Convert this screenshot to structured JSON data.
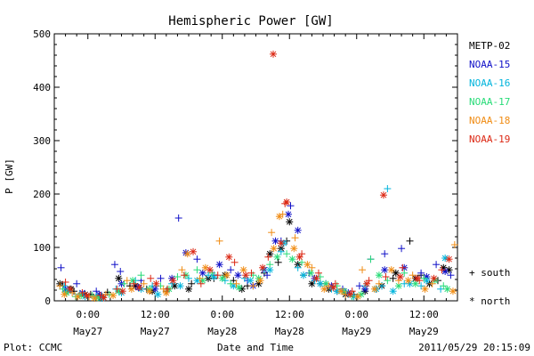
{
  "chart_data": {
    "type": "scatter",
    "title": "Hemispheric Power [GW]",
    "xlabel": "Date and Time",
    "ylabel": "P [GW]",
    "ylim": [
      0,
      500
    ],
    "yticks": [
      0,
      100,
      200,
      300,
      400,
      500
    ],
    "xlim_hours": [
      -6,
      66
    ],
    "xticks": [
      {
        "hour": 0,
        "time": "0:00",
        "date": "May27"
      },
      {
        "hour": 12,
        "time": "12:00",
        "date": "May27"
      },
      {
        "hour": 24,
        "time": "0:00",
        "date": "May28"
      },
      {
        "hour": 36,
        "time": "12:00",
        "date": "May28"
      },
      {
        "hour": 48,
        "time": "0:00",
        "date": "May29"
      },
      {
        "hour": 60,
        "time": "12:00",
        "date": "May29"
      }
    ],
    "grid": false,
    "legend_position": "right",
    "markers": {
      "south": "+",
      "north": "*"
    },
    "marker_legend": [
      {
        "symbol": "+",
        "label": "south"
      },
      {
        "symbol": "*",
        "label": "north"
      }
    ],
    "series": [
      {
        "name": "METP-02",
        "color": "#000000",
        "south": [
          [
            -4.5,
            28
          ],
          [
            -2.5,
            18
          ],
          [
            0.5,
            12
          ],
          [
            3.5,
            16
          ],
          [
            7.5,
            28
          ],
          [
            10.5,
            22
          ],
          [
            14,
            18
          ],
          [
            18.5,
            32
          ],
          [
            22.5,
            42
          ],
          [
            26,
            38
          ],
          [
            28.5,
            28
          ],
          [
            31.5,
            52
          ],
          [
            34,
            72
          ],
          [
            35.5,
            112
          ],
          [
            38.5,
            48
          ],
          [
            41.5,
            32
          ],
          [
            44.5,
            18
          ],
          [
            47.5,
            12
          ],
          [
            51.5,
            22
          ],
          [
            54.5,
            42
          ],
          [
            57.5,
            112
          ],
          [
            59.5,
            48
          ],
          [
            62.5,
            38
          ]
        ],
        "north": [
          [
            -5,
            32
          ],
          [
            -3,
            22
          ],
          [
            -0.5,
            12
          ],
          [
            2.5,
            8
          ],
          [
            5.5,
            42
          ],
          [
            8.5,
            28
          ],
          [
            11.5,
            18
          ],
          [
            15.5,
            28
          ],
          [
            18,
            22
          ],
          [
            21.5,
            42
          ],
          [
            24.5,
            48
          ],
          [
            27.5,
            22
          ],
          [
            30.5,
            32
          ],
          [
            32.5,
            88
          ],
          [
            34.5,
            98
          ],
          [
            36,
            148
          ],
          [
            37.5,
            68
          ],
          [
            40,
            32
          ],
          [
            43,
            22
          ],
          [
            46,
            12
          ],
          [
            49.5,
            18
          ],
          [
            52.5,
            28
          ],
          [
            55,
            52
          ],
          [
            58.5,
            42
          ],
          [
            61,
            32
          ],
          [
            63.5,
            62
          ],
          [
            64.5,
            58
          ]
        ]
      },
      {
        "name": "NOAA-15",
        "color": "#1010c8",
        "south": [
          [
            -4.8,
            62
          ],
          [
            -2,
            32
          ],
          [
            1.5,
            18
          ],
          [
            4.8,
            68
          ],
          [
            5.8,
            55
          ],
          [
            9.5,
            38
          ],
          [
            13,
            42
          ],
          [
            16.2,
            155
          ],
          [
            19.5,
            78
          ],
          [
            22.5,
            48
          ],
          [
            25.5,
            58
          ],
          [
            28.5,
            38
          ],
          [
            32,
            48
          ],
          [
            34.5,
            112
          ],
          [
            36.2,
            178
          ],
          [
            39.5,
            52
          ],
          [
            42.5,
            32
          ],
          [
            45.5,
            22
          ],
          [
            48.5,
            28
          ],
          [
            50.5,
            78
          ],
          [
            53,
            88
          ],
          [
            56,
            98
          ],
          [
            59.5,
            52
          ],
          [
            62.2,
            68
          ],
          [
            64.8,
            48
          ]
        ],
        "north": [
          [
            -4,
            22
          ],
          [
            -1,
            15
          ],
          [
            2,
            12
          ],
          [
            6,
            32
          ],
          [
            9,
            25
          ],
          [
            12,
            22
          ],
          [
            15,
            42
          ],
          [
            17.5,
            90
          ],
          [
            20.5,
            52
          ],
          [
            23.5,
            68
          ],
          [
            26.8,
            48
          ],
          [
            29.5,
            28
          ],
          [
            31.5,
            58
          ],
          [
            33.5,
            112
          ],
          [
            35.8,
            162
          ],
          [
            37.5,
            132
          ],
          [
            40.5,
            42
          ],
          [
            43.5,
            28
          ],
          [
            46.5,
            15
          ],
          [
            49.5,
            22
          ],
          [
            53,
            58
          ],
          [
            56.5,
            62
          ],
          [
            60.5,
            45
          ],
          [
            63.8,
            55
          ]
        ]
      },
      {
        "name": "NOAA-16",
        "color": "#00b4dc",
        "south": [
          [
            -4.2,
            28
          ],
          [
            -1.5,
            12
          ],
          [
            1.5,
            8
          ],
          [
            5,
            22
          ],
          [
            8.5,
            38
          ],
          [
            11.5,
            28
          ],
          [
            15,
            32
          ],
          [
            18,
            42
          ],
          [
            21.5,
            48
          ],
          [
            24.5,
            38
          ],
          [
            28,
            42
          ],
          [
            31.5,
            58
          ],
          [
            34.5,
            92
          ],
          [
            37.5,
            62
          ],
          [
            40.5,
            38
          ],
          [
            43.5,
            22
          ],
          [
            46.5,
            12
          ],
          [
            49.5,
            28
          ],
          [
            52.5,
            28
          ],
          [
            53.5,
            210
          ],
          [
            56.5,
            32
          ],
          [
            59.5,
            28
          ],
          [
            63,
            22
          ]
        ],
        "north": [
          [
            -3.5,
            18
          ],
          [
            -0.5,
            8
          ],
          [
            2.5,
            5
          ],
          [
            6,
            15
          ],
          [
            9.5,
            22
          ],
          [
            12.5,
            12
          ],
          [
            16.5,
            28
          ],
          [
            19.5,
            38
          ],
          [
            22.5,
            45
          ],
          [
            26,
            28
          ],
          [
            29,
            38
          ],
          [
            32.5,
            58
          ],
          [
            35,
            108
          ],
          [
            38.5,
            48
          ],
          [
            41.5,
            32
          ],
          [
            44.5,
            18
          ],
          [
            47.5,
            8
          ],
          [
            51.5,
            22
          ],
          [
            54.5,
            18
          ],
          [
            57.5,
            32
          ],
          [
            60.5,
            38
          ],
          [
            63.8,
            80
          ]
        ]
      },
      {
        "name": "NOAA-17",
        "color": "#28dc78",
        "south": [
          [
            -4.5,
            22
          ],
          [
            -2.2,
            8
          ],
          [
            0.8,
            10
          ],
          [
            3.8,
            12
          ],
          [
            6.5,
            32
          ],
          [
            9.5,
            48
          ],
          [
            13,
            28
          ],
          [
            16,
            45
          ],
          [
            19.5,
            58
          ],
          [
            22.2,
            52
          ],
          [
            25.5,
            32
          ],
          [
            29.5,
            48
          ],
          [
            32.5,
            68
          ],
          [
            35.5,
            88
          ],
          [
            38.2,
            72
          ],
          [
            41.5,
            45
          ],
          [
            44.5,
            28
          ],
          [
            47.2,
            8
          ],
          [
            50.5,
            78
          ],
          [
            53.5,
            38
          ],
          [
            56.5,
            52
          ],
          [
            60,
            42
          ],
          [
            63.5,
            28
          ]
        ],
        "north": [
          [
            -3.8,
            15
          ],
          [
            -1.2,
            10
          ],
          [
            1.8,
            6
          ],
          [
            5.5,
            18
          ],
          [
            8,
            38
          ],
          [
            11,
            22
          ],
          [
            14.5,
            22
          ],
          [
            17.5,
            48
          ],
          [
            20.5,
            38
          ],
          [
            24,
            42
          ],
          [
            27,
            25
          ],
          [
            30.5,
            42
          ],
          [
            33.8,
            82
          ],
          [
            36.5,
            78
          ],
          [
            39.8,
            52
          ],
          [
            42.5,
            32
          ],
          [
            45.8,
            18
          ],
          [
            48.8,
            12
          ],
          [
            52,
            48
          ],
          [
            55.5,
            28
          ],
          [
            58.5,
            32
          ],
          [
            62,
            38
          ],
          [
            64.2,
            22
          ]
        ]
      },
      {
        "name": "NOAA-18",
        "color": "#f08c14",
        "south": [
          [
            -5,
            28
          ],
          [
            -2.8,
            15
          ],
          [
            0.2,
            8
          ],
          [
            3.2,
            12
          ],
          [
            7,
            38
          ],
          [
            10,
            32
          ],
          [
            13.5,
            22
          ],
          [
            16.8,
            58
          ],
          [
            20,
            42
          ],
          [
            23.5,
            112
          ],
          [
            26.5,
            32
          ],
          [
            29.5,
            28
          ],
          [
            32.8,
            128
          ],
          [
            34.8,
            162
          ],
          [
            37,
            118
          ],
          [
            40,
            62
          ],
          [
            43,
            28
          ],
          [
            46,
            12
          ],
          [
            49,
            58
          ],
          [
            52,
            32
          ],
          [
            55.5,
            38
          ],
          [
            58,
            48
          ],
          [
            61.5,
            32
          ],
          [
            65.5,
            105
          ]
        ],
        "north": [
          [
            -4.2,
            12
          ],
          [
            -1.8,
            8
          ],
          [
            1.2,
            5
          ],
          [
            4.5,
            10
          ],
          [
            7.8,
            22
          ],
          [
            11,
            18
          ],
          [
            14,
            15
          ],
          [
            17.8,
            88
          ],
          [
            21,
            62
          ],
          [
            24.8,
            48
          ],
          [
            27.8,
            58
          ],
          [
            30.8,
            38
          ],
          [
            33.2,
            98
          ],
          [
            34.2,
            158
          ],
          [
            36.8,
            98
          ],
          [
            39.2,
            68
          ],
          [
            42.2,
            22
          ],
          [
            45.2,
            18
          ],
          [
            48.2,
            8
          ],
          [
            51.2,
            22
          ],
          [
            54.2,
            58
          ],
          [
            57.2,
            38
          ],
          [
            60.2,
            22
          ],
          [
            65.2,
            18
          ]
        ]
      },
      {
        "name": "NOAA-19",
        "color": "#dc2814",
        "south": [
          [
            -4,
            35
          ],
          [
            -1,
            15
          ],
          [
            2.2,
            10
          ],
          [
            5.2,
            22
          ],
          [
            8.2,
            32
          ],
          [
            11.2,
            42
          ],
          [
            14.2,
            22
          ],
          [
            17.2,
            48
          ],
          [
            20.2,
            32
          ],
          [
            23.2,
            48
          ],
          [
            26.2,
            72
          ],
          [
            29.2,
            52
          ],
          [
            32.2,
            82
          ],
          [
            35.2,
            182
          ],
          [
            38.2,
            88
          ],
          [
            41.2,
            52
          ],
          [
            44.2,
            32
          ],
          [
            47.2,
            18
          ],
          [
            50.2,
            38
          ],
          [
            53.2,
            45
          ],
          [
            56.2,
            62
          ],
          [
            59.2,
            38
          ],
          [
            63.2,
            58
          ]
        ],
        "north": [
          [
            -3.2,
            22
          ],
          [
            -0.2,
            10
          ],
          [
            2.8,
            6
          ],
          [
            6.2,
            18
          ],
          [
            9.2,
            25
          ],
          [
            12.2,
            32
          ],
          [
            15.2,
            38
          ],
          [
            18.8,
            92
          ],
          [
            21.8,
            58
          ],
          [
            25.2,
            82
          ],
          [
            28.2,
            48
          ],
          [
            31.2,
            62
          ],
          [
            33.1,
            462
          ],
          [
            34.5,
            108
          ],
          [
            35.5,
            185
          ],
          [
            37.8,
            82
          ],
          [
            40.8,
            42
          ],
          [
            43.8,
            25
          ],
          [
            46.8,
            12
          ],
          [
            49.8,
            32
          ],
          [
            52.8,
            198
          ],
          [
            55.8,
            45
          ],
          [
            58.8,
            42
          ],
          [
            61.8,
            42
          ],
          [
            64.5,
            78
          ]
        ]
      }
    ]
  },
  "footer": {
    "left": "Plot: CCMC",
    "right": "2011/05/29 20:15:09"
  }
}
